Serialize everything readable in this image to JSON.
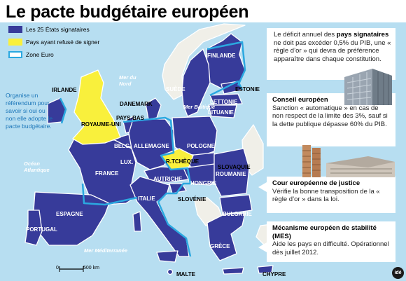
{
  "title": "Le pacte budgétaire européen",
  "legend": {
    "signataires": "Les 25 États signataires",
    "refus": "Pays ayant refusé de signer",
    "zone_euro": "Zone Euro",
    "colors": {
      "signataires": "#373b9a",
      "refus": "#f9f03c",
      "zone_euro": "#2ba8e0",
      "mer": "#b7def1"
    }
  },
  "side_note": "Organise un référendum pour savoir si oui ou non elle adopte le pacte budgétaire.",
  "seas": {
    "nord": "Mer du Nord",
    "baltique": "Mer Baltique",
    "atlantique": "Océan Atlantique",
    "mediterranee": "Mer Méditerranée"
  },
  "countries": {
    "finlande": "FINLANDE",
    "suede": "SUÈDE",
    "estonie": "ESTONIE",
    "lettonie": "LETTONIE",
    "lituanie": "LITUANIE",
    "danemark": "DANEMARK",
    "irlande": "IRLANDE",
    "royaume_uni": "ROYAUME-UNI",
    "pays_bas": "PAYS-BAS",
    "belgique": "BELG.",
    "allemagne": "ALLEMAGNE",
    "pologne": "POLOGNE",
    "lux": "LUX.",
    "r_tcheque": "R.TCHÈQUE",
    "slovaquie": "SLOVAQUIE",
    "france": "FRANCE",
    "autriche": "AUTRICHE",
    "hongrie": "HONGRIE",
    "roumanie": "ROUMANIE",
    "slovenie": "SLOVÉNIE",
    "italie": "ITALIE",
    "bulgarie": "BULGARIE",
    "espagne": "ESPAGNE",
    "portugal": "PORTUGAL",
    "grece": "GRÈCE",
    "malte": "MALTE",
    "chypre": "CHYPRE"
  },
  "scale": {
    "value": 500,
    "unit": "km",
    "zero": "0"
  },
  "boxes": [
    {
      "id": "deficit",
      "text_a": "Le déficit annuel des ",
      "bold": "pays signataires",
      "text_b": " ne doit pas excéder 0,5% du PIB, une « règle d’or » qui devra de préférence apparaître dans chaque constitution."
    },
    {
      "id": "conseil",
      "title": "Conseil européen",
      "text": "Sanction « automatique » en cas de non respect de la limite des 3%, sauf si la dette publique dépasse 60% du PIB."
    },
    {
      "id": "cour",
      "title": "Cour européenne de justice",
      "text": "Vérifie la bonne transposition de la « règle d’or » dans la loi."
    },
    {
      "id": "mes",
      "title": "Mécanisme européen de stabilité (MES)",
      "text": "Aide les pays en difficulté. Opérationnel dès juillet 2012."
    }
  ],
  "logo": "idé"
}
